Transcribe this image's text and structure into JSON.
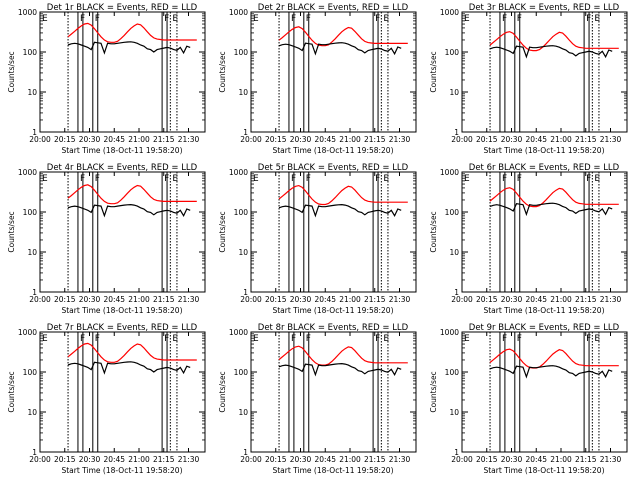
{
  "chart_data": {
    "type": "line",
    "panels": [
      {
        "title": "Det 1r BLACK = Events, RED = LLD",
        "xlabel": "Start Time (18-Oct-11 19:58:20)",
        "ylabel": "Counts/sec"
      },
      {
        "title": "Det 2r BLACK = Events, RED = LLD",
        "xlabel": "Start Time (18-Oct-11 19:58:20)",
        "ylabel": "Counts/sec"
      },
      {
        "title": "Det 3r BLACK = Events, RED = LLD",
        "xlabel": "Start Time (18-Oct-11 19:58:20)",
        "ylabel": "Counts/sec"
      },
      {
        "title": "Det 4r BLACK = Events, RED = LLD",
        "xlabel": "Start Time (18-Oct-11 19:58:20)",
        "ylabel": "Counts/sec"
      },
      {
        "title": "Det 5r BLACK = Events, RED = LLD",
        "xlabel": "Start Time (18-Oct-11 19:58:20)",
        "ylabel": "Counts/sec"
      },
      {
        "title": "Det 6r BLACK = Events, RED = LLD",
        "xlabel": "Start Time (18-Oct-11 19:58:20)",
        "ylabel": "Counts/sec"
      },
      {
        "title": "Det 7r BLACK = Events, RED = LLD",
        "xlabel": "Start Time (18-Oct-11 19:58:20)",
        "ylabel": "Counts/sec"
      },
      {
        "title": "Det 8r BLACK = Events, RED = LLD",
        "xlabel": "Start Time (18-Oct-11 19:58:20)",
        "ylabel": "Counts/sec"
      },
      {
        "title": "Det 9r BLACK = Events, RED = LLD",
        "xlabel": "Start Time (18-Oct-11 19:58:20)",
        "ylabel": "Counts/sec"
      }
    ],
    "x_ticks": [
      "20:00",
      "20:15",
      "20:30",
      "20:45",
      "21:00",
      "21:15",
      "21:30"
    ],
    "x_tick_minutes": [
      0,
      15,
      30,
      45,
      60,
      75,
      90
    ],
    "x_range_minutes": [
      0,
      100
    ],
    "y_scale": "log",
    "y_ticks": [
      "1",
      "10",
      "100",
      "1000"
    ],
    "y_range": [
      1,
      1000
    ],
    "series_colors": {
      "events": "#000000",
      "lld": "#ff0000"
    },
    "series_x_minutes": [
      17,
      19,
      21,
      23,
      25,
      27,
      29,
      31,
      33,
      35,
      37,
      39,
      41,
      43,
      45,
      47,
      49,
      51,
      53,
      55,
      57,
      59,
      61,
      63,
      65,
      67,
      69,
      71,
      73,
      75,
      77,
      79,
      81,
      83,
      85,
      87,
      89,
      91,
      93,
      95
    ],
    "lld_series": [
      240,
      280,
      330,
      390,
      450,
      500,
      520,
      470,
      380,
      300,
      240,
      200,
      180,
      175,
      175,
      185,
      215,
      260,
      320,
      390,
      450,
      500,
      480,
      400,
      320,
      260,
      225,
      210,
      205,
      200,
      200,
      200,
      200,
      200,
      200,
      200,
      200,
      200,
      200,
      200
    ],
    "events_series": [
      150,
      160,
      165,
      160,
      150,
      140,
      130,
      115,
      175,
      170,
      165,
      95,
      165,
      160,
      160,
      165,
      170,
      175,
      178,
      180,
      175,
      165,
      150,
      140,
      120,
      115,
      100,
      115,
      120,
      125,
      130,
      125,
      115,
      110,
      130,
      95,
      140,
      130,
      null,
      null
    ],
    "region_markers": [
      {
        "label": "E",
        "start": 0,
        "end": 17
      },
      {
        "label": "F",
        "start": 23,
        "end": 26
      },
      {
        "label": "F",
        "start": 32,
        "end": 35
      },
      {
        "label": "F",
        "start": 74,
        "end": 77
      },
      {
        "label": "E",
        "start": 79,
        "end": 83
      }
    ]
  }
}
